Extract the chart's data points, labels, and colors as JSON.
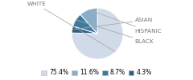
{
  "labels": [
    "WHITE",
    "ASIAN",
    "BLACK",
    "HISPANIC"
  ],
  "values": [
    75.4,
    4.3,
    8.7,
    11.6
  ],
  "colors": [
    "#d0dae8",
    "#2e6080",
    "#3d7a9e",
    "#8aaec8"
  ],
  "legend_labels": [
    "75.4%",
    "11.6%",
    "8.7%",
    "4.3%"
  ],
  "legend_colors": [
    "#d0dae8",
    "#8aaec8",
    "#3d7a9e",
    "#2e6080"
  ],
  "label_fontsize": 5.2,
  "legend_fontsize": 5.5,
  "bg_color": "#ffffff"
}
